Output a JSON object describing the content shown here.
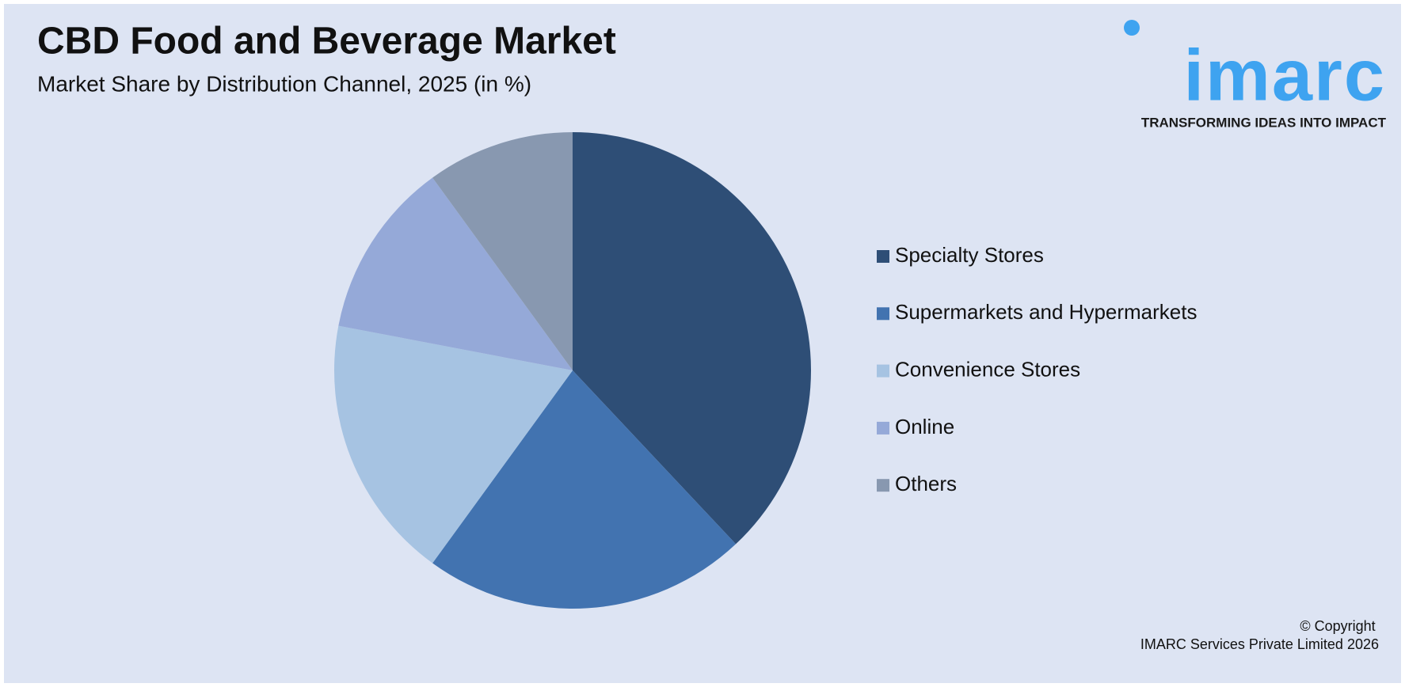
{
  "chart_data": {
    "type": "pie",
    "title": "CBD Food and Beverage Market",
    "subtitle": "Market Share by Distribution Channel, 2025 (in %)",
    "categories": [
      "Specialty Stores",
      "Supermarkets and Hypermarkets",
      "Convenience Stores",
      "Online",
      "Others"
    ],
    "values": [
      38,
      22,
      18,
      12,
      10
    ],
    "colors": [
      "#2e4e76",
      "#4273b0",
      "#a6c3e2",
      "#95a9d8",
      "#8898b0"
    ]
  },
  "logo": {
    "name": "imarc",
    "tagline": "TRANSFORMING IDEAS INTO IMPACT"
  },
  "copyright": [
    "© Copyright",
    "IMARC Services Private Limited 2026"
  ]
}
